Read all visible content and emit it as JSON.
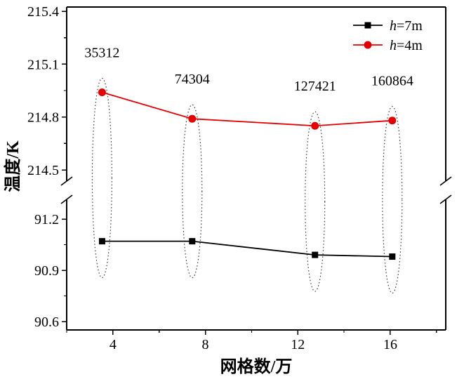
{
  "figure": {
    "background": "#ffffff",
    "frame_color": "#000000"
  },
  "chart_data": {
    "type": "line",
    "title": "",
    "xlabel": "网格数/万",
    "ylabel": "温度/K",
    "grid": false,
    "x_axis": {
      "ticks": [
        4,
        8,
        12,
        16
      ],
      "minor_ticks": [
        2,
        6,
        10,
        14,
        18
      ],
      "lim": [
        2,
        18.4
      ]
    },
    "y_axis_broken": true,
    "y_upper": {
      "ticks": [
        215.4,
        215.1,
        214.8,
        214.5
      ],
      "minor_ticks": [
        215.25,
        214.95,
        214.65
      ]
    },
    "y_lower": {
      "ticks": [
        91.2,
        90.9,
        90.6
      ],
      "minor_ticks": [
        91.05,
        90.75
      ]
    },
    "series": [
      {
        "name": "h=7m",
        "legend_italic": "h",
        "legend_rest": "=7m",
        "color": "#000000",
        "marker": "square",
        "panel": "lower",
        "x": [
          3.5312,
          7.4304,
          12.7421,
          16.0864
        ],
        "y": [
          91.07,
          91.07,
          90.99,
          90.98
        ]
      },
      {
        "name": "h=4m",
        "legend_italic": "h",
        "legend_rest": "=4m",
        "color": "#e60000",
        "marker": "circle",
        "panel": "upper",
        "x": [
          3.5312,
          7.4304,
          12.7421,
          16.0864
        ],
        "y": [
          214.94,
          214.79,
          214.75,
          214.78
        ]
      }
    ],
    "annotations": [
      {
        "text": "35312",
        "x": 3.5312
      },
      {
        "text": "74304",
        "x": 7.4304
      },
      {
        "text": "127421",
        "x": 12.7421
      },
      {
        "text": "160864",
        "x": 16.0864
      }
    ],
    "legend": {
      "position": "top-right",
      "order": [
        "h=7m",
        "h=4m"
      ]
    },
    "highlight_ellipses": {
      "enabled": true,
      "style": "dotted",
      "color": "#333333"
    }
  }
}
